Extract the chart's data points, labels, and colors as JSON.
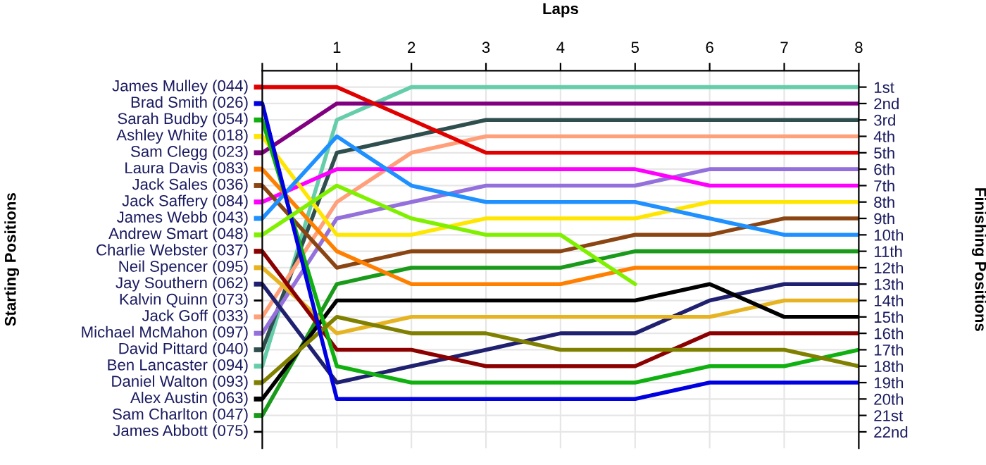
{
  "chart_data": {
    "type": "line",
    "xlabel": "Laps",
    "ylabel": "Finishing Positions",
    "x": [
      0,
      1,
      2,
      3,
      4,
      5,
      6,
      7,
      8
    ],
    "xlim": [
      0,
      8
    ],
    "xticks": [
      {
        "value": 0,
        "label": null
      },
      1,
      2,
      3,
      4,
      5,
      6,
      7,
      8
    ],
    "annotations": [
      "Starting Positions",
      "Kalvin Quinn (073)",
      "James Abbott (075)"
    ],
    "ylim": [
      23,
      0
    ],
    "yticks": [
      {
        "value": 1,
        "label": "1st"
      },
      {
        "value": 2,
        "label": "2nd"
      },
      {
        "value": 3,
        "label": "3rd"
      },
      {
        "value": 4,
        "label": "4th"
      },
      {
        "value": 5,
        "label": "5th"
      },
      {
        "value": 6,
        "label": "6th"
      },
      {
        "value": 7,
        "label": "7th"
      },
      {
        "value": 8,
        "label": "8th"
      },
      {
        "value": 9,
        "label": "9th"
      },
      {
        "value": 10,
        "label": "10th"
      },
      {
        "value": 11,
        "label": "11th"
      },
      {
        "value": 12,
        "label": "12th"
      },
      {
        "value": 13,
        "label": "13th"
      },
      {
        "value": 14,
        "label": "14th"
      },
      {
        "value": 15,
        "label": "15th"
      },
      {
        "value": 16,
        "label": "16th"
      },
      {
        "value": 17,
        "label": "17th"
      },
      {
        "value": 18,
        "label": "18th"
      },
      {
        "value": 19,
        "label": "19th"
      },
      {
        "value": 20,
        "label": "20th"
      },
      {
        "value": 21,
        "label": "21st"
      },
      {
        "value": 22,
        "label": "22nd"
      }
    ],
    "grid": true,
    "legend": "left",
    "marker": "none",
    "line_style": "solid",
    "series": [
      {
        "name": "Ben Lancaster (094)",
        "color": "#66cdaa",
        "values": [
          18,
          3,
          1,
          1,
          1,
          1,
          1,
          1,
          1
        ]
      },
      {
        "name": "Sam Clegg (023)",
        "color": "#800080",
        "values": [
          5,
          2,
          2,
          2,
          2,
          2,
          2,
          2,
          2
        ]
      },
      {
        "name": "David Pittard (040)",
        "color": "#2f4f4f",
        "values": [
          17,
          5,
          4,
          3,
          3,
          3,
          3,
          3,
          3
        ]
      },
      {
        "name": "Jack Goff (033)",
        "color": "#ffa07a",
        "values": [
          15,
          8,
          5,
          4,
          4,
          4,
          4,
          4,
          4
        ]
      },
      {
        "name": "James Mulley (044)",
        "color": "#e00000",
        "values": [
          1,
          1,
          3,
          5,
          5,
          5,
          5,
          5,
          5
        ]
      },
      {
        "name": "Michael McMahon (097)",
        "color": "#9370db",
        "values": [
          16,
          9,
          8,
          7,
          7,
          7,
          6,
          6,
          6
        ]
      },
      {
        "name": "Jack Saffery (084)",
        "color": "#ff00ff",
        "values": [
          8,
          6,
          6,
          6,
          6,
          6,
          7,
          7,
          7
        ]
      },
      {
        "name": "Ashley White (018)",
        "color": "#ffe600",
        "values": [
          4,
          10,
          10,
          9,
          9,
          9,
          8,
          8,
          8
        ]
      },
      {
        "name": "Jack Sales (036)",
        "color": "#8b4513",
        "values": [
          7,
          12,
          11,
          11,
          11,
          10,
          10,
          9,
          9
        ]
      },
      {
        "name": "James Webb (043)",
        "color": "#1e90ff",
        "values": [
          9,
          4,
          7,
          8,
          8,
          8,
          9,
          10,
          10
        ]
      },
      {
        "name": "Sam Charlton (047)",
        "color": "#1a9a1a",
        "values": [
          21,
          13,
          12,
          12,
          12,
          11,
          11,
          11,
          11
        ]
      },
      {
        "name": "Laura Davis (083)",
        "color": "#ff8000",
        "values": [
          6,
          11,
          13,
          13,
          13,
          12,
          12,
          12,
          12
        ]
      },
      {
        "name": "Jay Southern (062)",
        "color": "#202070",
        "values": [
          13,
          19,
          18,
          17,
          16,
          16,
          14,
          13,
          13
        ]
      },
      {
        "name": "Neil Spencer (095)",
        "color": "#e6b422",
        "values": [
          12,
          16,
          15,
          15,
          15,
          15,
          15,
          14,
          14
        ]
      },
      {
        "name": "Alex Austin (063)",
        "color": "#000000",
        "values": [
          20,
          14,
          14,
          14,
          14,
          14,
          13,
          15,
          15
        ]
      },
      {
        "name": "Charlie Webster (037)",
        "color": "#8b0000",
        "values": [
          11,
          17,
          17,
          18,
          18,
          18,
          16,
          16,
          16
        ]
      },
      {
        "name": "Sarah Budby (054)",
        "color": "#10b010",
        "values": [
          3,
          18,
          19,
          19,
          19,
          19,
          18,
          18,
          17
        ]
      },
      {
        "name": "Daniel Walton (093)",
        "color": "#808000",
        "values": [
          19,
          15,
          16,
          16,
          17,
          17,
          17,
          17,
          18
        ]
      },
      {
        "name": "Brad Smith (026)",
        "color": "#0000e0",
        "values": [
          2,
          20,
          20,
          20,
          20,
          20,
          19,
          19,
          19
        ]
      },
      {
        "name": "Andrew Smart (048)",
        "color": "#80f000",
        "values": [
          10,
          7,
          9,
          10,
          10,
          13,
          null,
          null,
          null
        ]
      }
    ]
  }
}
